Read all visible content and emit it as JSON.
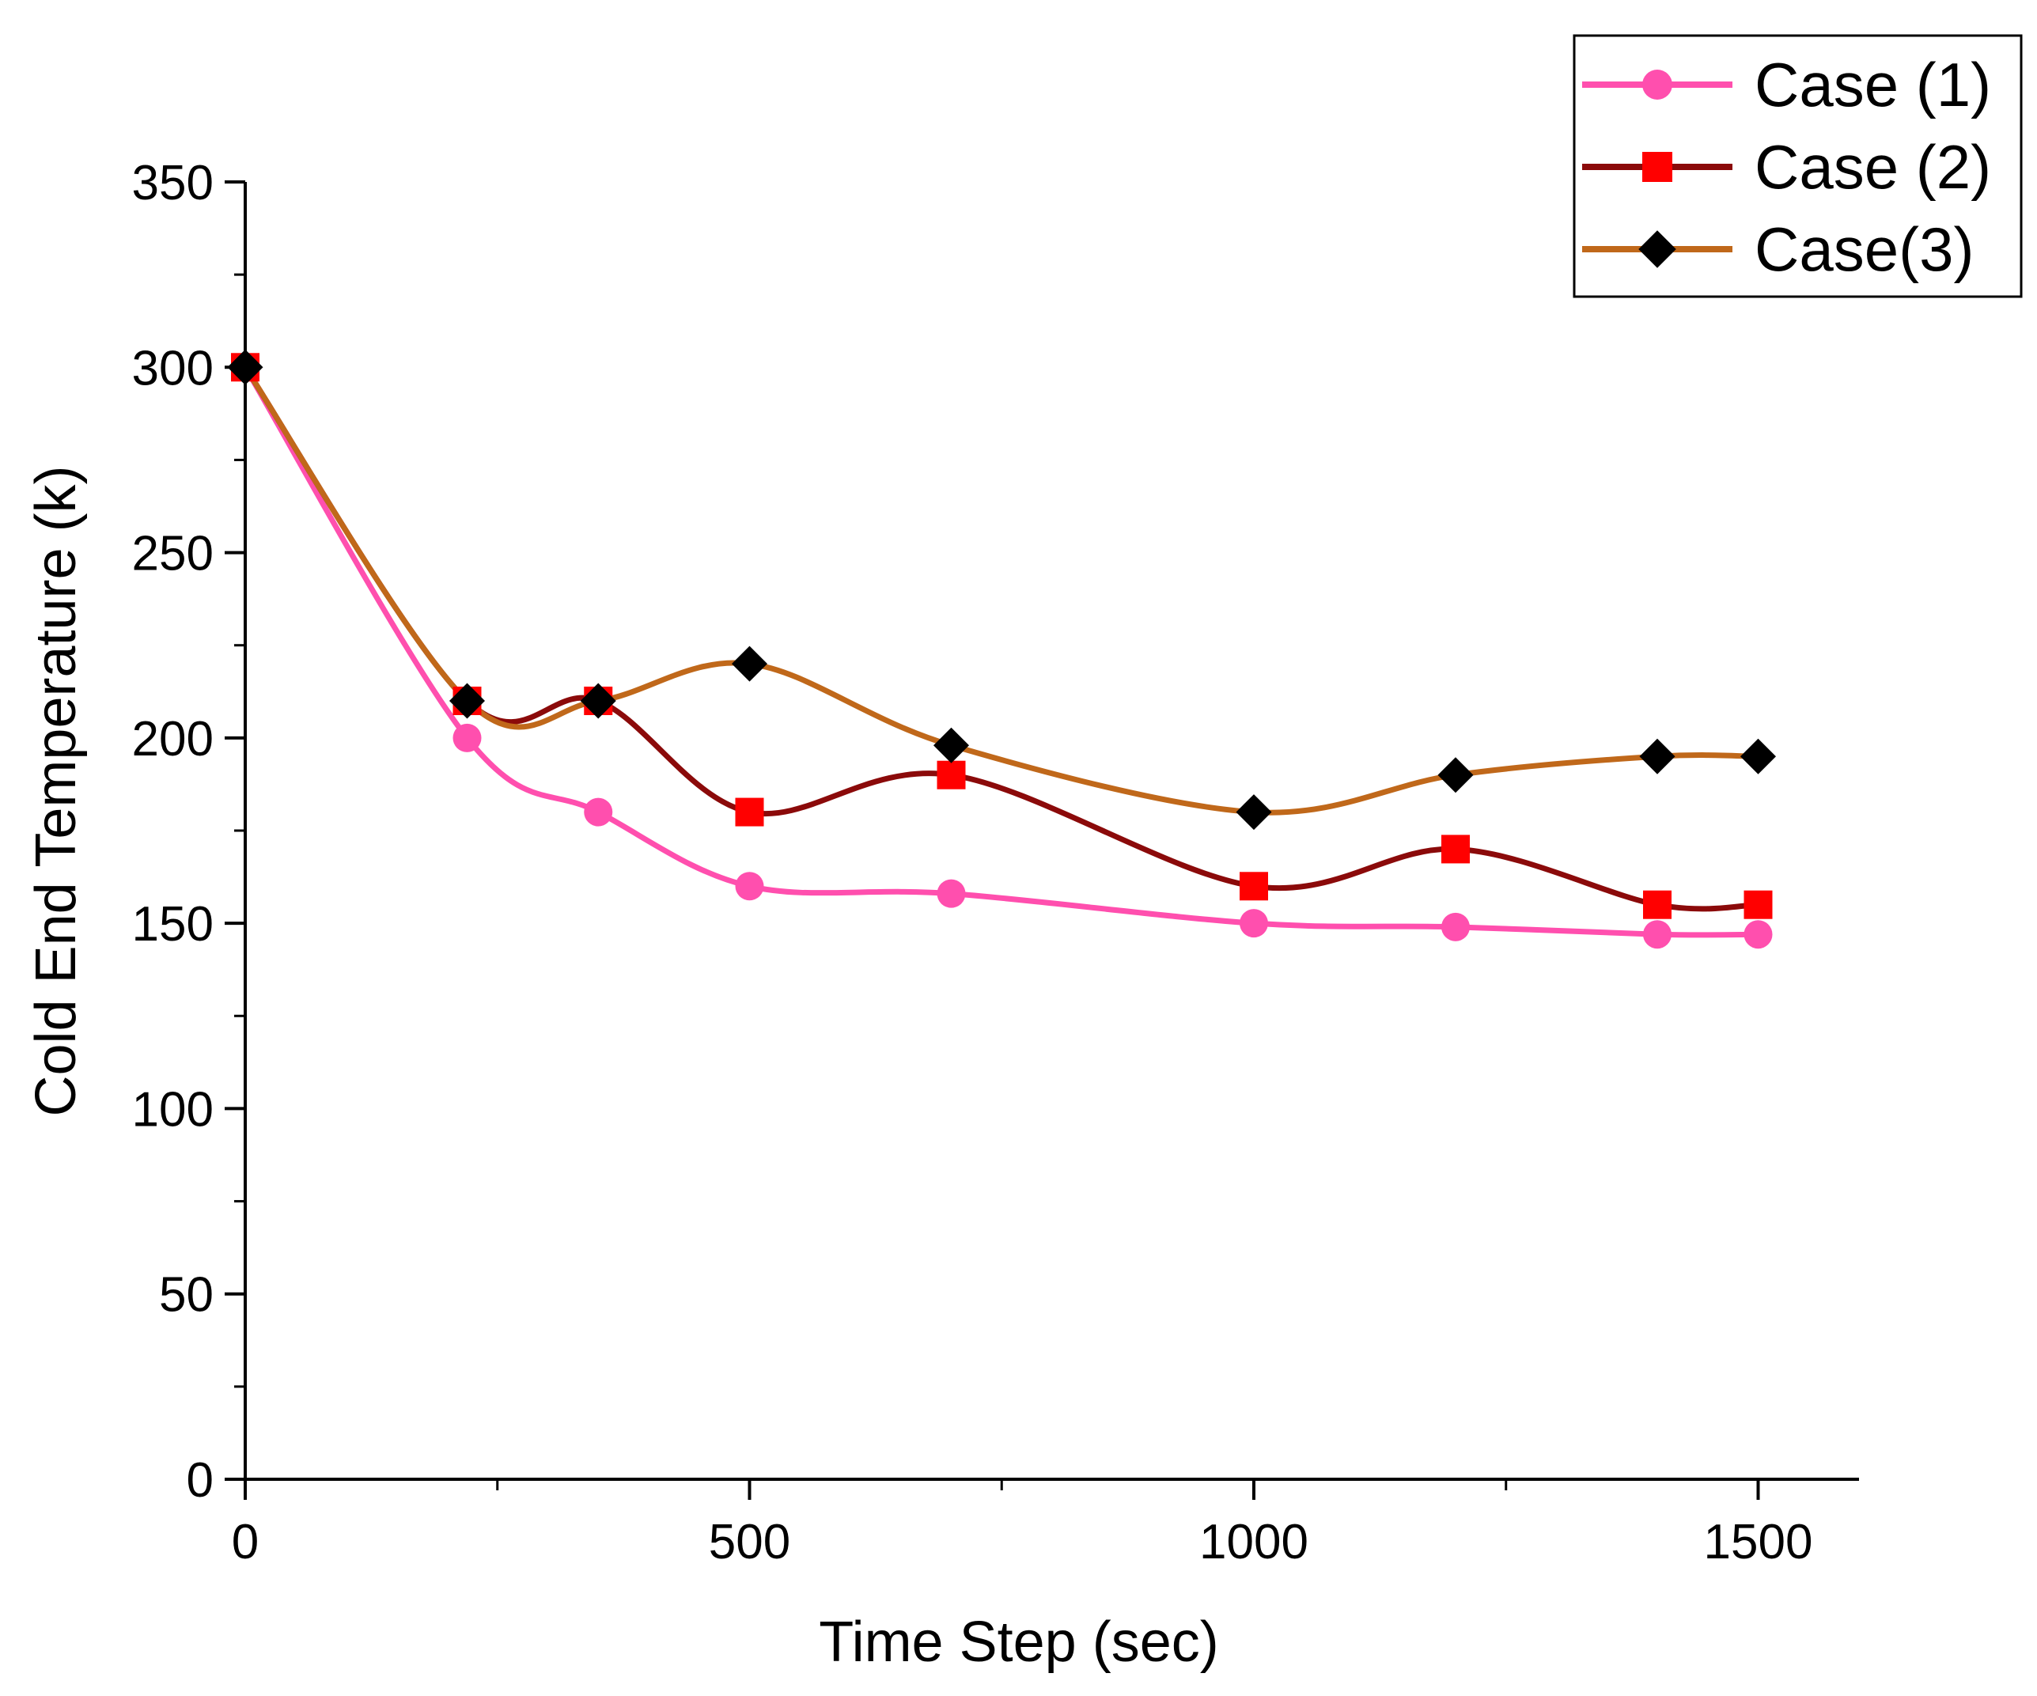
{
  "chart_data": {
    "type": "line",
    "title": "",
    "xlabel": "Time Step (sec)",
    "ylabel": "Cold End Temperature (k)",
    "xlim": [
      0,
      1600
    ],
    "ylim": [
      0,
      350
    ],
    "xticks": [
      0,
      500,
      1000,
      1500
    ],
    "yticks": [
      0,
      50,
      100,
      150,
      200,
      250,
      300,
      350
    ],
    "x_tick_labels": [
      "0",
      "500",
      "1000",
      "1500"
    ],
    "y_tick_labels": [
      "0",
      "50",
      "100",
      "150",
      "200",
      "250",
      "300",
      "350"
    ],
    "legend_position": "top-right",
    "series": [
      {
        "name": "Case (1)",
        "color": "#ff4fae",
        "marker": "circle",
        "x": [
          0,
          220,
          350,
          500,
          700,
          1000,
          1200,
          1400,
          1500
        ],
        "y": [
          300,
          200,
          180,
          160,
          158,
          150,
          149,
          147,
          147
        ]
      },
      {
        "name": "Case (2)",
        "color": "#8b0a0a",
        "marker_color": "#ff0000",
        "marker": "square",
        "x": [
          0,
          220,
          350,
          500,
          700,
          1000,
          1200,
          1400,
          1500
        ],
        "y": [
          300,
          210,
          210,
          180,
          190,
          160,
          170,
          155,
          155
        ]
      },
      {
        "name": "Case(3)",
        "color": "#c0681a",
        "marker_color": "#000000",
        "marker": "diamond",
        "x": [
          0,
          220,
          350,
          500,
          700,
          1000,
          1200,
          1400,
          1500
        ],
        "y": [
          300,
          210,
          210,
          220,
          198,
          180,
          190,
          195,
          195
        ]
      }
    ]
  }
}
